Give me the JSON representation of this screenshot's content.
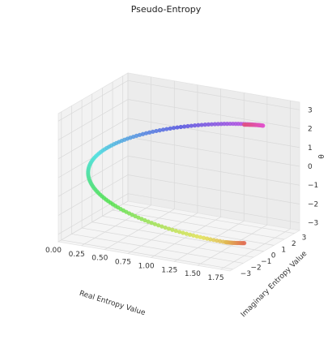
{
  "chart_data": {
    "type": "scatter3d",
    "title": "Pseudo-Entropy",
    "xlabel": "Real Entropy Value",
    "ylabel": "Imaginary Entropy Value",
    "zlabel": "θ",
    "xlim": [
      0,
      1.85
    ],
    "ylim": [
      -3.3,
      3.5
    ],
    "zlim": [
      -3.4,
      3.4
    ],
    "x_ticks": [
      "0.00",
      "0.25",
      "0.50",
      "0.75",
      "1.00",
      "1.25",
      "1.50",
      "1.75"
    ],
    "y_ticks": [
      "−3",
      "−2",
      "−1",
      "0",
      "1",
      "2",
      "3"
    ],
    "z_ticks": [
      "−3",
      "−2",
      "−1",
      "0",
      "1",
      "2",
      "3"
    ],
    "grid": true,
    "series": [
      {
        "description": "helix: x = 1 - cos(θ), y = θ·cos(θ)·0.5 spiral; colored by θ (husl palette)",
        "theta_min": -3.14159,
        "theta_max": 3.14159,
        "n_points": 160
      }
    ]
  }
}
